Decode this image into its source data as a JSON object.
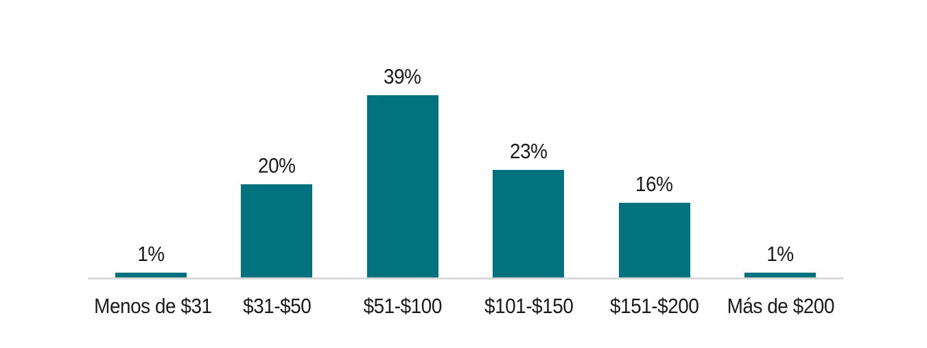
{
  "chart_data": {
    "type": "bar",
    "categories": [
      "Menos de $31",
      "$31-$50",
      "$51-$100",
      "$101-$150",
      "$151-$200",
      "Más de $200"
    ],
    "values": [
      1,
      20,
      39,
      23,
      16,
      1
    ],
    "value_labels": [
      "1%",
      "20%",
      "39%",
      "23%",
      "16%",
      "1%"
    ],
    "grid": false,
    "legend": false,
    "bar_color": "#00737f",
    "axis_line_color": "#d9d9d9",
    "label_color": "#1a1a1a"
  }
}
